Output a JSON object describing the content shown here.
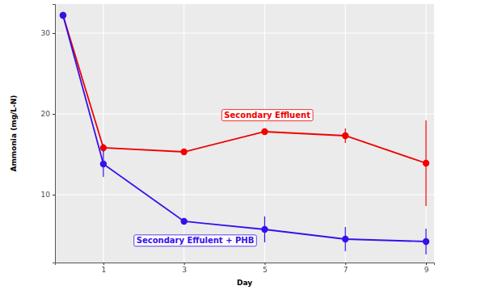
{
  "chart_data": {
    "type": "line",
    "x_label": "Day",
    "y_label": "Ammonia (mg/L-N)",
    "x": [
      0,
      1,
      3,
      5,
      7,
      9
    ],
    "xlim": [
      -0.2,
      9.2
    ],
    "xticks": [
      1,
      3,
      5,
      7,
      9
    ],
    "ylim": [
      1.6,
      33.6
    ],
    "yticks": [
      10,
      20,
      30
    ],
    "grid": true,
    "marker": "circle",
    "series": [
      {
        "name": "Secondary Effluent",
        "color": "#f00000",
        "values": [
          32.2,
          15.8,
          15.3,
          17.8,
          17.3,
          13.9
        ],
        "errors": [
          0,
          0.5,
          0.2,
          0.4,
          0.9,
          5.3
        ]
      },
      {
        "name": "Secondary Effulent + PHB",
        "color": "#3311ee",
        "values": [
          32.2,
          13.8,
          6.7,
          5.7,
          4.5,
          4.2
        ],
        "errors": [
          0,
          1.6,
          0.2,
          1.6,
          1.5,
          1.6
        ]
      }
    ]
  }
}
